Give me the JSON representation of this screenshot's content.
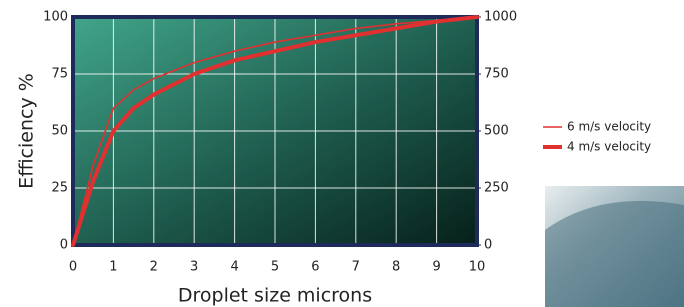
{
  "chart_data": {
    "type": "line",
    "xlabel": "Droplet size microns",
    "ylabel": "Efficiency %",
    "x": [
      0,
      0.5,
      1,
      1.5,
      2,
      3,
      4,
      5,
      6,
      7,
      8,
      9,
      10
    ],
    "series": [
      {
        "name": "6 m/s velocity",
        "color": "#e03030",
        "values": [
          0,
          35,
          60,
          68,
          73,
          80,
          85,
          89,
          92,
          95,
          97,
          98.5,
          100
        ]
      },
      {
        "name": "4 m/s velocity",
        "color": "#e03030",
        "values": [
          0,
          28,
          50,
          60,
          66,
          75,
          81,
          85,
          89,
          92,
          95,
          98,
          100
        ]
      }
    ],
    "xlim": [
      0,
      10
    ],
    "xticks": [
      0,
      1,
      2,
      3,
      4,
      5,
      6,
      7,
      8,
      9,
      10
    ],
    "ylim": [
      0,
      100
    ],
    "yticks": [
      0,
      25,
      50,
      75,
      100
    ],
    "y2lim": [
      0,
      1000
    ],
    "y2ticks": [
      0,
      250,
      500,
      750,
      1000
    ],
    "grid": true
  }
}
